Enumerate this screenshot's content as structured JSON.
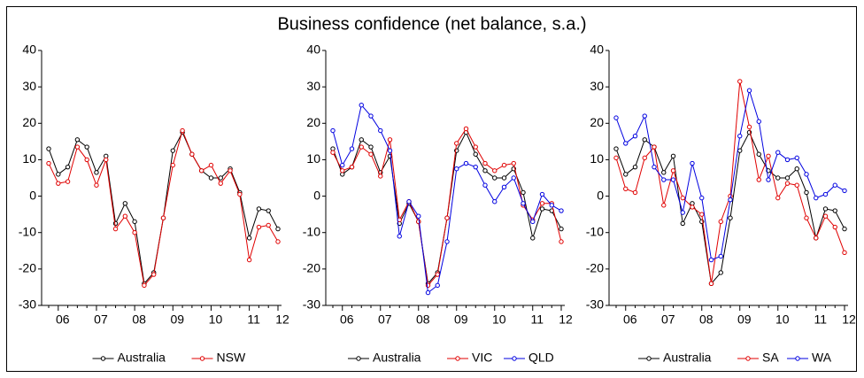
{
  "title": "Business confidence (net balance, s.a.)",
  "chart_data": [
    {
      "type": "line",
      "categories": [
        null,
        "06",
        null,
        null,
        null,
        "07",
        null,
        null,
        null,
        "08",
        null,
        null,
        null,
        "09",
        null,
        null,
        null,
        "10",
        null,
        null,
        null,
        "11",
        null,
        null,
        "12"
      ],
      "ylim": [
        -30,
        40
      ],
      "yticks": [
        -30,
        -20,
        -10,
        0,
        10,
        20,
        30,
        40
      ],
      "series": [
        {
          "name": "Australia",
          "color": "#000000",
          "values": [
            13,
            6,
            8,
            15.5,
            13.5,
            6.5,
            11,
            -7.5,
            -2,
            -7,
            -24,
            -21,
            -6,
            12.5,
            17.5,
            11.5,
            7,
            5,
            5,
            7.5,
            1,
            -11.5,
            -3.5,
            -4,
            -9
          ]
        },
        {
          "name": "NSW",
          "color": "#e00000",
          "values": [
            9,
            3.5,
            4,
            13.5,
            10,
            3,
            10,
            -9,
            -5.5,
            -10,
            -24.5,
            -21.5,
            -6,
            8.5,
            18,
            11.5,
            7,
            8.5,
            3.5,
            7,
            0.5,
            -17.5,
            -8.5,
            -8,
            -12.5
          ]
        }
      ]
    },
    {
      "type": "line",
      "categories": [
        null,
        "06",
        null,
        null,
        null,
        "07",
        null,
        null,
        null,
        "08",
        null,
        null,
        null,
        "09",
        null,
        null,
        null,
        "10",
        null,
        null,
        null,
        "11",
        null,
        null,
        "12"
      ],
      "ylim": [
        -30,
        40
      ],
      "yticks": [
        -30,
        -20,
        -10,
        0,
        10,
        20,
        30,
        40
      ],
      "series": [
        {
          "name": "Australia",
          "color": "#000000",
          "values": [
            13,
            6,
            8,
            15.5,
            13.5,
            6.5,
            11,
            -7.5,
            -2,
            -7,
            -24,
            -21,
            -6,
            12.5,
            17.5,
            11.5,
            7,
            5,
            5,
            7.5,
            1,
            -11.5,
            -3.5,
            -4,
            -9
          ]
        },
        {
          "name": "VIC",
          "color": "#e00000",
          "values": [
            12,
            7,
            8,
            13.5,
            11.5,
            5.5,
            15.5,
            -6.5,
            -1.5,
            -7,
            -24.5,
            -21.5,
            -6,
            14.5,
            18.5,
            13.5,
            9,
            7,
            8.5,
            9,
            -2.5,
            -6.5,
            -2,
            -2,
            -12.5
          ]
        },
        {
          "name": "QLD",
          "color": "#0000e0",
          "values": [
            18,
            8.5,
            13,
            25,
            22,
            18,
            12.5,
            -11,
            -1.5,
            -5.5,
            -26.5,
            -24.5,
            -12.5,
            7.5,
            9,
            8,
            3,
            -1.5,
            2.5,
            5,
            -2,
            -7,
            0.5,
            -2.5,
            -4
          ]
        }
      ]
    },
    {
      "type": "line",
      "categories": [
        null,
        "06",
        null,
        null,
        null,
        "07",
        null,
        null,
        null,
        "08",
        null,
        null,
        null,
        "09",
        null,
        null,
        null,
        "10",
        null,
        null,
        null,
        "11",
        null,
        null,
        "12"
      ],
      "ylim": [
        -30,
        40
      ],
      "yticks": [
        -30,
        -20,
        -10,
        0,
        10,
        20,
        30,
        40
      ],
      "series": [
        {
          "name": "Australia",
          "color": "#000000",
          "values": [
            13,
            6,
            8,
            15.5,
            13.5,
            6.5,
            11,
            -7.5,
            -2,
            -7,
            -24,
            -21,
            -6,
            12.5,
            17.5,
            11.5,
            7,
            5,
            5,
            7.5,
            1,
            -11.5,
            -3.5,
            -4,
            -9
          ]
        },
        {
          "name": "SA",
          "color": "#e00000",
          "values": [
            10.5,
            2,
            1,
            10.5,
            13.5,
            -2.5,
            7,
            -0.5,
            -3,
            -5,
            -24,
            -7,
            0,
            31.5,
            19,
            4.5,
            11,
            -0.5,
            3.5,
            3,
            -6,
            -11.5,
            -5.5,
            -8.5,
            -15.5
          ]
        },
        {
          "name": "WA",
          "color": "#0000e0",
          "values": [
            21.5,
            14.5,
            16.5,
            22,
            8,
            4.5,
            4.5,
            -4.5,
            9,
            -0.5,
            -17.5,
            -16.5,
            -1,
            16.5,
            29,
            20.5,
            4.5,
            12,
            10,
            10.5,
            6,
            -0.5,
            0.5,
            3,
            1.5
          ]
        }
      ]
    }
  ]
}
